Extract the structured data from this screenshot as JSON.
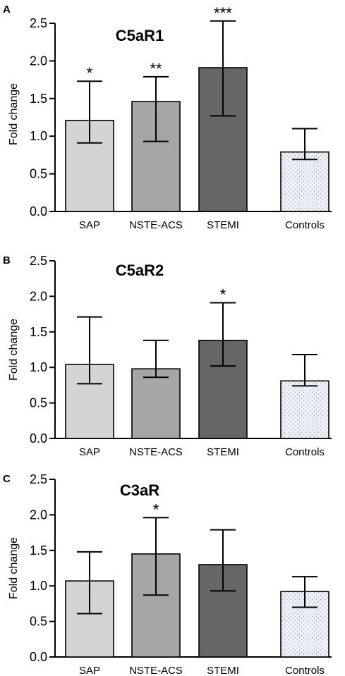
{
  "colors": {
    "SAP": "#d4d4d4",
    "NSTE-ACS": "#a6a6a6",
    "STEMI": "#666666",
    "Controls": "#eef1f6"
  },
  "chart_data": [
    {
      "panel": "A",
      "type": "bar",
      "title": "C5aR1",
      "ylabel": "Fold change",
      "categories": [
        "SAP",
        "NSTE-ACS",
        "STEMI",
        "Controls"
      ],
      "values": [
        1.21,
        1.46,
        1.91,
        0.79
      ],
      "error_low": [
        0.91,
        0.93,
        1.27,
        0.69
      ],
      "error_high": [
        1.73,
        1.79,
        2.53,
        1.1
      ],
      "significance": [
        "*",
        "**",
        "***",
        ""
      ],
      "ylim": [
        0,
        2.5
      ],
      "yticks": [
        "0.0",
        "0.5",
        "1.0",
        "1.5",
        "2.0",
        "2.5"
      ]
    },
    {
      "panel": "B",
      "type": "bar",
      "title": "C5aR2",
      "ylabel": "Fold change",
      "categories": [
        "SAP",
        "NSTE-ACS",
        "STEMI",
        "Controls"
      ],
      "values": [
        1.04,
        0.98,
        1.38,
        0.81
      ],
      "error_low": [
        0.77,
        0.86,
        1.02,
        0.74
      ],
      "error_high": [
        1.71,
        1.38,
        1.91,
        1.18
      ],
      "significance": [
        "",
        "",
        "*",
        ""
      ],
      "ylim": [
        0,
        2.5
      ],
      "yticks": [
        "0.0",
        "0.5",
        "1.0",
        "1.5",
        "2.0",
        "2.5"
      ]
    },
    {
      "panel": "C",
      "type": "bar",
      "title": "C3aR",
      "ylabel": "Fold change",
      "categories": [
        "SAP",
        "NSTE-ACS",
        "STEMI",
        "Controls"
      ],
      "values": [
        1.07,
        1.45,
        1.3,
        0.92
      ],
      "error_low": [
        0.61,
        0.87,
        0.93,
        0.7
      ],
      "error_high": [
        1.48,
        1.96,
        1.79,
        1.13
      ],
      "significance": [
        "",
        "*",
        "",
        ""
      ],
      "ylim": [
        0,
        2.5
      ],
      "yticks": [
        "0.0",
        "0.5",
        "1.0",
        "1.5",
        "2.0",
        "2.5"
      ]
    }
  ]
}
